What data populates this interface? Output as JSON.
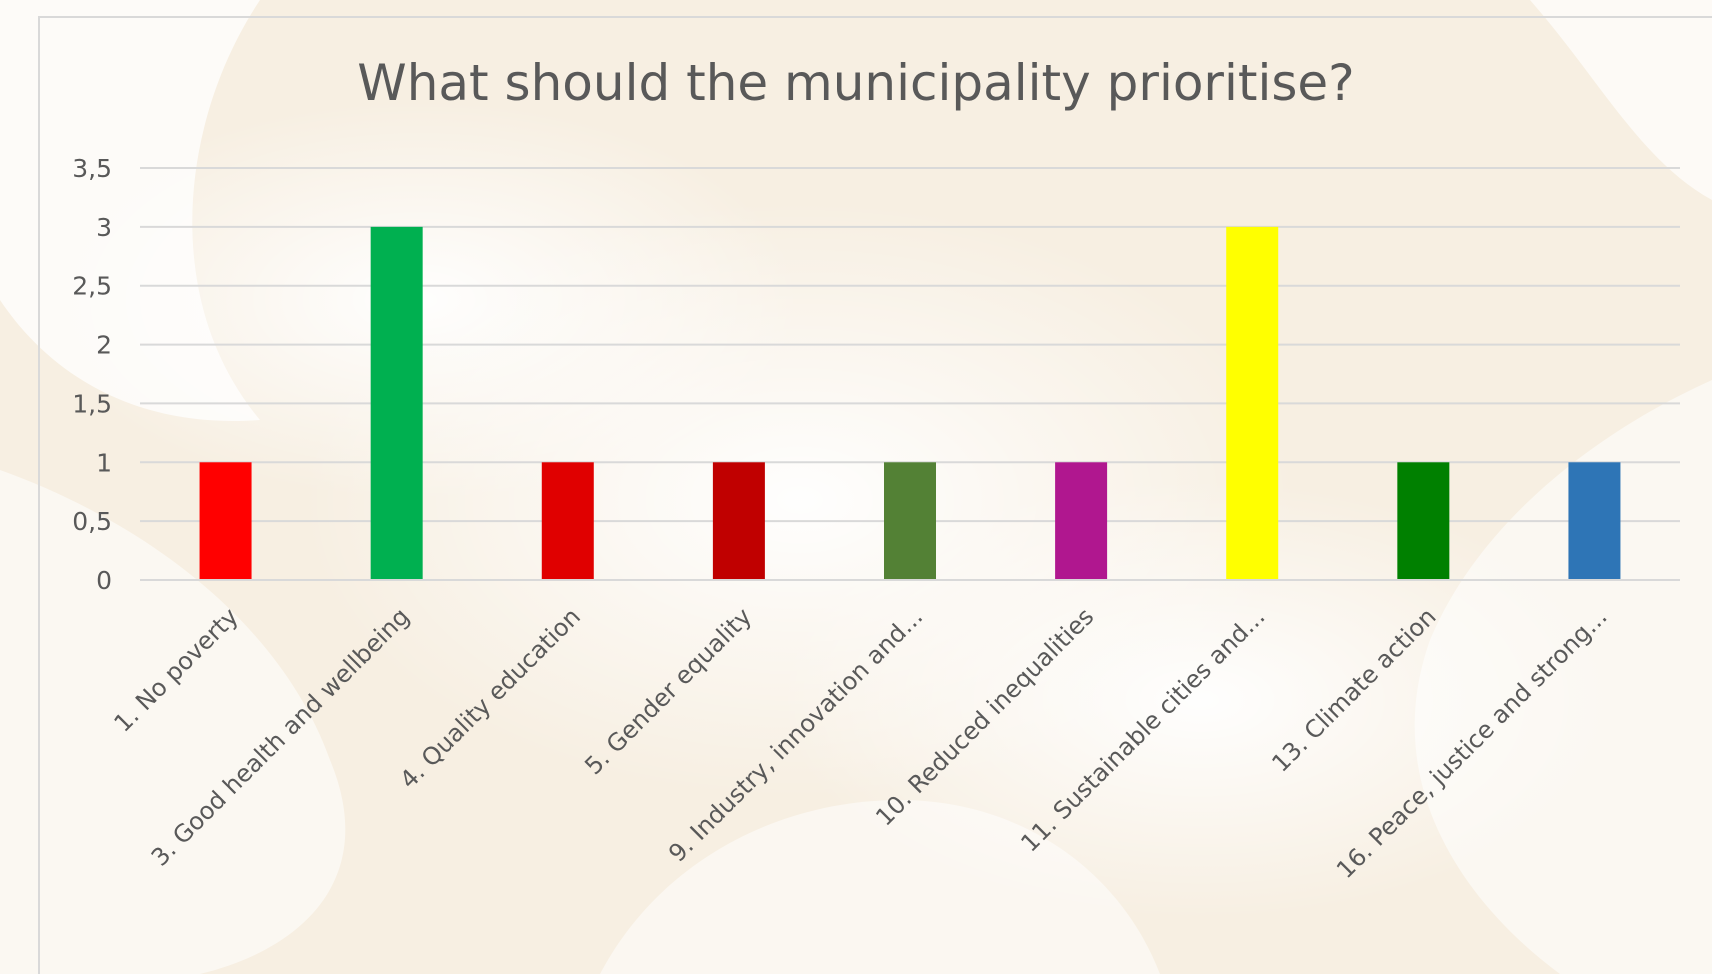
{
  "chart_data": {
    "type": "bar",
    "title": "What should the municipality prioritise?",
    "categories": [
      "1. No poverty",
      "3. Good health and wellbeing",
      "4. Quality education",
      "5. Gender equality",
      "9. Industry, innovation and...",
      "10. Reduced inequalities",
      "11. Sustainable cities and...",
      "13. Climate action",
      "16. Peace, justice and strong..."
    ],
    "values": [
      1,
      3,
      1,
      1,
      1,
      1,
      3,
      1,
      1
    ],
    "bar_colors": [
      "#ff0000",
      "#00b050",
      "#e00000",
      "#c00000",
      "#538135",
      "#b0178f",
      "#ffff00",
      "#008000",
      "#2e75b6"
    ],
    "ylim": [
      0,
      3.5
    ],
    "yticks": [
      "0",
      "0,5",
      "1",
      "1,5",
      "2",
      "2,5",
      "3",
      "3,5"
    ],
    "grid": true,
    "legend": "none",
    "xlabel": "",
    "ylabel": ""
  }
}
